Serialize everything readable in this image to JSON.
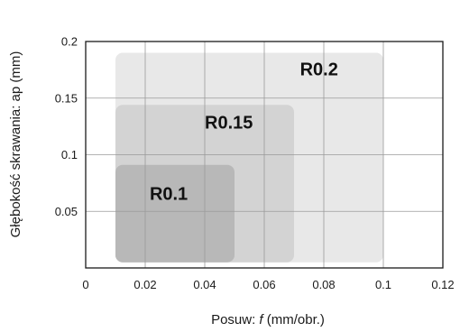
{
  "chart_data": {
    "type": "area",
    "xlabel_prefix": "Posuw: ",
    "xlabel_var": "f",
    "xlabel_suffix": " (mm/obr.)",
    "ylabel": "Głębokość skrawania: ap (mm)",
    "xlim": [
      0,
      0.12
    ],
    "ylim": [
      0,
      0.2
    ],
    "x_ticks": [
      0,
      0.02,
      0.04,
      0.06,
      0.08,
      0.1,
      0.12
    ],
    "x_tick_labels": [
      "0",
      "0.02",
      "0.04",
      "0.06",
      "0.08",
      "0.1",
      "0.12"
    ],
    "y_ticks": [
      0.05,
      0.1,
      0.15,
      0.2
    ],
    "y_tick_labels": [
      "0.05",
      "0.1",
      "0.15",
      "0.2"
    ],
    "grid": true,
    "regions": [
      {
        "name": "R0.2",
        "label": "R0.2",
        "x": [
          0.01,
          0.1
        ],
        "y": [
          0.005,
          0.19
        ],
        "color": "#e8e8e8"
      },
      {
        "name": "R0.15",
        "label": "R0.15",
        "x": [
          0.01,
          0.07
        ],
        "y": [
          0.005,
          0.144
        ],
        "color": "#d3d3d3"
      },
      {
        "name": "R0.1",
        "label": "R0.1",
        "x": [
          0.01,
          0.05
        ],
        "y": [
          0.005,
          0.091
        ],
        "color": "#b8b8b8"
      }
    ]
  }
}
